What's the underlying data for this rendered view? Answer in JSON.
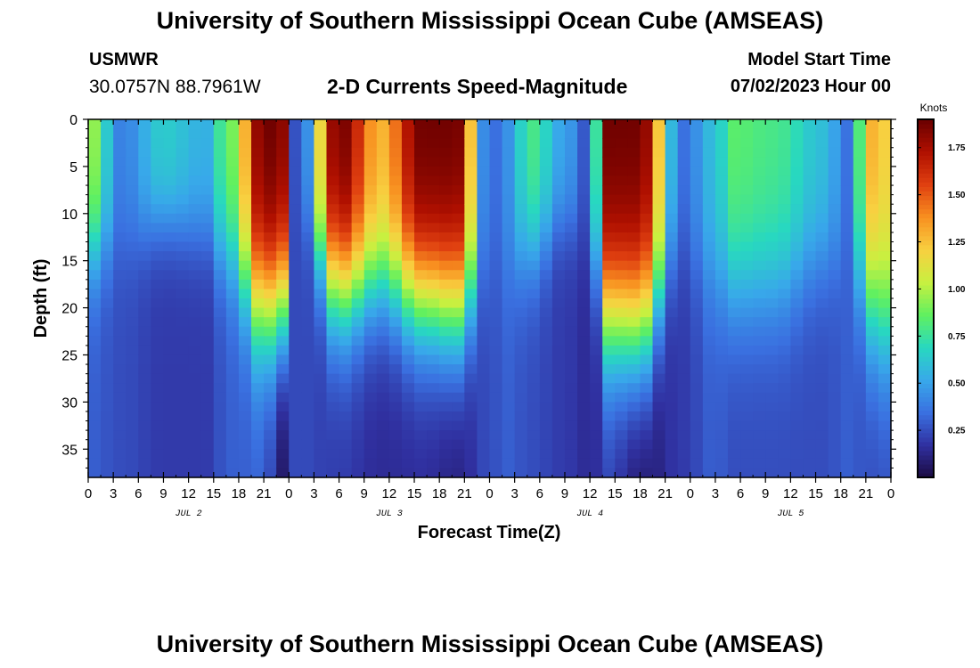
{
  "header": {
    "title": "University of Southern Mississippi Ocean Cube (AMSEAS)",
    "station": "USMWR",
    "coordinates": "30.0757N  88.7961W",
    "variable": "2-D Currents Speed-Magnitude",
    "model_start_label": "Model Start Time",
    "model_start_value": "07/02/2023 Hour 00"
  },
  "footer": {
    "title": "University of Southern Mississippi Ocean Cube (AMSEAS)"
  },
  "chart_data": {
    "type": "heatmap",
    "title": "2-D Currents Speed-Magnitude",
    "xlabel": "Forecast Time(Z)",
    "ylabel": "Depth (ft)",
    "x_range_hours": [
      0,
      96
    ],
    "y_range_ft": [
      0,
      38
    ],
    "y_inverted": true,
    "x_tick_hours": [
      0,
      3,
      6,
      9,
      12,
      15,
      18,
      21,
      24,
      27,
      30,
      33,
      36,
      39,
      42,
      45,
      48,
      51,
      54,
      57,
      60,
      63,
      66,
      69,
      72,
      75,
      78,
      81,
      84,
      87,
      90,
      93,
      96
    ],
    "x_tick_labels": [
      "0",
      "3",
      "6",
      "9",
      "12",
      "15",
      "18",
      "21",
      "0",
      "3",
      "6",
      "9",
      "12",
      "15",
      "18",
      "21",
      "0",
      "3",
      "6",
      "9",
      "12",
      "15",
      "18",
      "21",
      "0",
      "3",
      "6",
      "9",
      "12",
      "15",
      "18",
      "21",
      "0"
    ],
    "y_ticks": [
      0,
      5,
      10,
      15,
      20,
      25,
      30,
      35
    ],
    "y_tick_labels": [
      "0",
      "5",
      "10",
      "15",
      "20",
      "25",
      "30",
      "35"
    ],
    "day_labels": [
      {
        "hour": 12,
        "label": "JUL 2"
      },
      {
        "hour": 36,
        "label": "JUL 3"
      },
      {
        "hour": 60,
        "label": "JUL 4"
      },
      {
        "hour": 84,
        "label": "JUL 5"
      }
    ],
    "colorbar": {
      "unit": "Knots",
      "range": [
        0.0,
        1.9
      ],
      "ticks": [
        0.25,
        0.5,
        0.75,
        1.0,
        1.25,
        1.5,
        1.75
      ],
      "tick_labels": [
        "0.25",
        "0.50",
        "0.75",
        "1.00",
        "1.25",
        "1.50",
        "1.75"
      ],
      "palette": [
        "#1a0a40",
        "#3030a0",
        "#3a70e0",
        "#38a8ea",
        "#28d8c0",
        "#60f060",
        "#c8f040",
        "#f8d040",
        "#f89020",
        "#e04010",
        "#b01000",
        "#6a0000"
      ]
    },
    "hour_step": 1.5,
    "depth_step": 1,
    "profile_hours": [
      0,
      4,
      9,
      14,
      17,
      21,
      23,
      25,
      30,
      35,
      40,
      44,
      48,
      50,
      53,
      57,
      60,
      62,
      66,
      71,
      75,
      77,
      82,
      88,
      91,
      93.5,
      96
    ],
    "surface_speed_knots": [
      1.0,
      0.4,
      0.65,
      0.55,
      0.9,
      1.9,
      1.9,
      0.2,
      1.9,
      1.3,
      1.9,
      1.9,
      0.3,
      0.45,
      0.8,
      0.5,
      0.25,
      1.9,
      1.9,
      0.35,
      0.6,
      0.85,
      0.8,
      0.6,
      0.35,
      1.3,
      1.2
    ],
    "bottom_speed_knots": [
      0.3,
      0.25,
      0.2,
      0.2,
      0.3,
      0.3,
      0.05,
      0.25,
      0.2,
      0.15,
      0.15,
      0.1,
      0.25,
      0.3,
      0.25,
      0.2,
      0.15,
      0.2,
      0.05,
      0.2,
      0.3,
      0.25,
      0.25,
      0.25,
      0.3,
      0.25,
      0.25
    ],
    "jet_depth_ft": [
      14,
      13,
      11,
      12,
      15,
      20,
      20,
      10,
      18,
      17,
      19,
      20,
      16,
      16,
      14,
      11,
      13,
      21,
      22,
      14,
      17,
      18,
      18,
      15,
      14,
      20,
      22
    ]
  }
}
